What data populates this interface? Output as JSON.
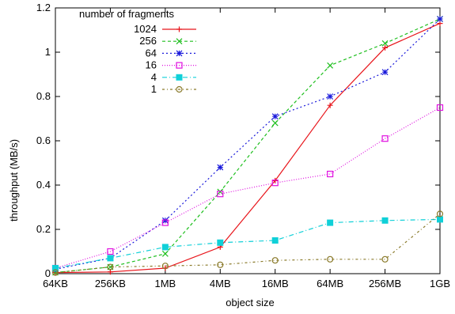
{
  "chart_data": {
    "type": "line",
    "xlabel": "object size",
    "ylabel": "throughput (MB/s)",
    "categories": [
      "64KB",
      "256KB",
      "1MB",
      "4MB",
      "16MB",
      "64MB",
      "256MB",
      "1GB"
    ],
    "ylim": [
      0,
      1.2
    ],
    "yticks": [
      "0",
      "0.2",
      "0.4",
      "0.6",
      "0.8",
      "1",
      "1.2"
    ],
    "grid": false,
    "legend_title": "number of fragments",
    "legend_position": "top-left",
    "series": [
      {
        "name": "1024",
        "color": "#e8141a",
        "dash": "",
        "marker": "plus",
        "values": [
          0.005,
          0.008,
          0.025,
          0.12,
          0.42,
          0.76,
          1.02,
          1.13
        ]
      },
      {
        "name": "256",
        "color": "#1fbf1f",
        "dash": "4,3",
        "marker": "cross",
        "values": [
          0.005,
          0.03,
          0.09,
          0.37,
          0.68,
          0.94,
          1.04,
          1.15
        ]
      },
      {
        "name": "64",
        "color": "#1a1adb",
        "dash": "2,3",
        "marker": "star",
        "values": [
          0.02,
          0.07,
          0.24,
          0.48,
          0.71,
          0.8,
          0.91,
          1.15
        ]
      },
      {
        "name": "16",
        "color": "#e010e0",
        "dash": "1,2",
        "marker": "square",
        "values": [
          0.025,
          0.1,
          0.23,
          0.36,
          0.41,
          0.45,
          0.61,
          0.75
        ]
      },
      {
        "name": "4",
        "color": "#10d0d8",
        "dash": "6,3,1,3",
        "marker": "filled-square",
        "values": [
          0.025,
          0.07,
          0.12,
          0.14,
          0.15,
          0.23,
          0.24,
          0.245
        ]
      },
      {
        "name": "1",
        "color": "#8a7a2a",
        "dash": "3,3,1,3",
        "marker": "circle",
        "values": [
          0.005,
          0.03,
          0.035,
          0.04,
          0.06,
          0.065,
          0.065,
          0.27
        ]
      }
    ]
  }
}
